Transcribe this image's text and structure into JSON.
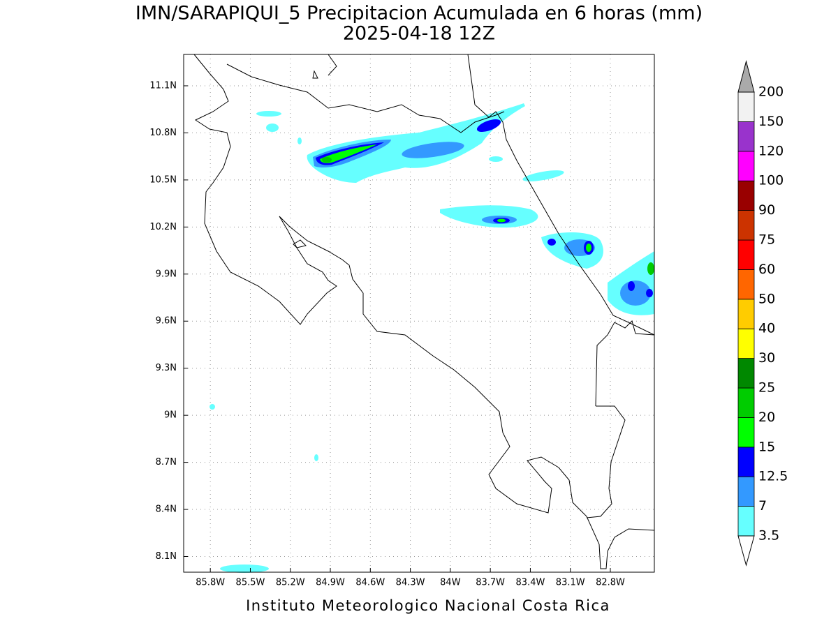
{
  "map": {
    "title": "IMN/SARAPIQUI_5 Precipitacion Acumulada en 6 horas (mm)",
    "subtitle": "2025-04-18 12Z",
    "footer": "Instituto Meteorologico Nacional Costa Rica",
    "xlim": [
      -86.0,
      -82.47
    ],
    "ylim": [
      8.0,
      11.3
    ],
    "grid": true,
    "xticks": [
      {
        "value": -85.8,
        "label": "85.8W"
      },
      {
        "value": -85.5,
        "label": "85.5W"
      },
      {
        "value": -85.2,
        "label": "85.2W"
      },
      {
        "value": -84.9,
        "label": "84.9W"
      },
      {
        "value": -84.6,
        "label": "84.6W"
      },
      {
        "value": -84.3,
        "label": "84.3W"
      },
      {
        "value": -84.0,
        "label": "84W"
      },
      {
        "value": -83.7,
        "label": "83.7W"
      },
      {
        "value": -83.4,
        "label": "83.4W"
      },
      {
        "value": -83.1,
        "label": "83.1W"
      },
      {
        "value": -82.8,
        "label": "82.8W"
      }
    ],
    "yticks": [
      {
        "value": 8.1,
        "label": "8.1N"
      },
      {
        "value": 8.4,
        "label": "8.4N"
      },
      {
        "value": 8.7,
        "label": "8.7N"
      },
      {
        "value": 9.0,
        "label": "9N"
      },
      {
        "value": 9.3,
        "label": "9.3N"
      },
      {
        "value": 9.6,
        "label": "9.6N"
      },
      {
        "value": 9.9,
        "label": "9.9N"
      },
      {
        "value": 10.2,
        "label": "10.2N"
      },
      {
        "value": 10.5,
        "label": "10.5N"
      },
      {
        "value": 10.8,
        "label": "10.8N"
      },
      {
        "value": 11.1,
        "label": "11.1N"
      }
    ],
    "colorbar": {
      "levels": [
        3.5,
        7,
        12.5,
        15,
        20,
        25,
        30,
        40,
        50,
        60,
        75,
        90,
        100,
        120,
        150,
        200
      ],
      "colors": [
        "#66ffff",
        "#3399ff",
        "#0000ff",
        "#00ff00",
        "#00cc00",
        "#008800",
        "#ffff00",
        "#ffcc00",
        "#ff6600",
        "#ff0000",
        "#cc3300",
        "#990000",
        "#ff00ff",
        "#9933cc",
        "#f2f2f2"
      ],
      "under_color": "#ffffff",
      "over_color": "#aaaaaa"
    }
  }
}
